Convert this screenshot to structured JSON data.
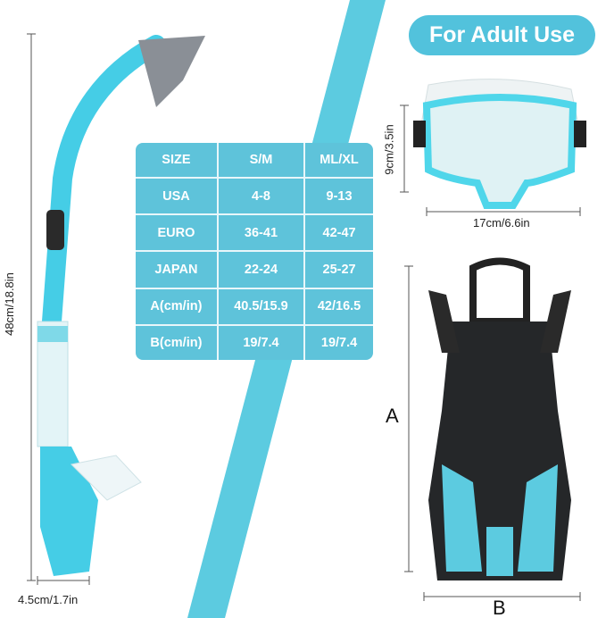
{
  "badge": "For Adult Use",
  "size_table": {
    "header": [
      "SIZE",
      "S/M",
      "ML/XL"
    ],
    "rows": [
      [
        "USA",
        "4-8",
        "9-13"
      ],
      [
        "EURO",
        "36-41",
        "42-47"
      ],
      [
        "JAPAN",
        "22-24",
        "25-27"
      ],
      [
        "A(cm/in)",
        "40.5/15.9",
        "42/16.5"
      ],
      [
        "B(cm/in)",
        "19/7.4",
        "19/7.4"
      ]
    ]
  },
  "dimensions": {
    "snorkel_length": "48cm/18.8in",
    "snorkel_width": "4.5cm/1.7in",
    "mask_height": "9cm/3.5in",
    "mask_width": "17cm/6.6in",
    "fin_length_label": "A",
    "fin_width_label": "B"
  },
  "colors": {
    "accent": "#52c2dc",
    "table": "#5ec3da",
    "stripe": "#5ccbe0"
  }
}
